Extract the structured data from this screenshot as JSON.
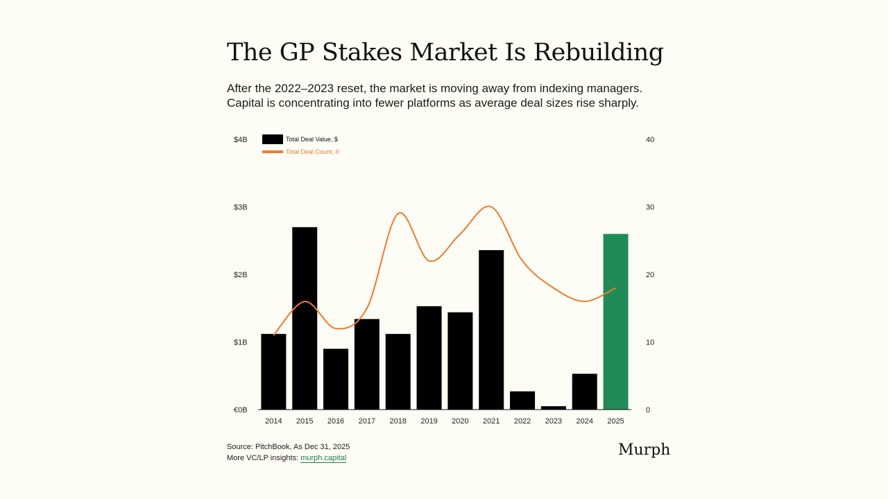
{
  "title": "The GP Stakes Market Is Rebuilding",
  "subtitle": [
    "After the 2022–2023 reset, the market is moving away from indexing managers.",
    "Capital is concentrating into fewer platforms as average deal sizes rise sharply."
  ],
  "footer": {
    "source": "Source: PitchBook, As Dec 31, 2025",
    "more_label": "More VC/LP insights: ",
    "link_text": "murph.capital"
  },
  "brand": "Murph",
  "colors": {
    "bar": "#000000",
    "highlight_bar": "#218b58",
    "line": "#f07a2e",
    "background": "#fdfcf5"
  },
  "chart_data": {
    "type": "bar",
    "categories": [
      "2014",
      "2015",
      "2016",
      "2017",
      "2018",
      "2019",
      "2020",
      "2021",
      "2022",
      "2023",
      "2024",
      "2025"
    ],
    "series": [
      {
        "name": "Total Deal Value, $",
        "type": "bar",
        "axis": "left",
        "values": [
          1.12,
          2.7,
          0.9,
          1.34,
          1.12,
          1.53,
          1.44,
          2.36,
          0.27,
          0.05,
          0.53,
          2.6
        ],
        "highlight_index": 11
      },
      {
        "name": "Total Deal Count, #",
        "type": "line",
        "axis": "right",
        "values": [
          11,
          16,
          12,
          15,
          29,
          22,
          26,
          30,
          22,
          18,
          16,
          18
        ]
      }
    ],
    "y_left": {
      "ylim": [
        0,
        4
      ],
      "ticks": [
        0,
        1,
        2,
        3,
        4
      ],
      "tick_labels": [
        "€0B",
        "$1B",
        "$2B",
        "$3B",
        "$4B"
      ]
    },
    "y_right": {
      "ylim": [
        0,
        40
      ],
      "ticks": [
        0,
        10,
        20,
        30,
        40
      ],
      "tick_labels": [
        "0",
        "10",
        "20",
        "30",
        "40"
      ]
    },
    "legend": {
      "placement": "top-left"
    },
    "grid": false
  }
}
